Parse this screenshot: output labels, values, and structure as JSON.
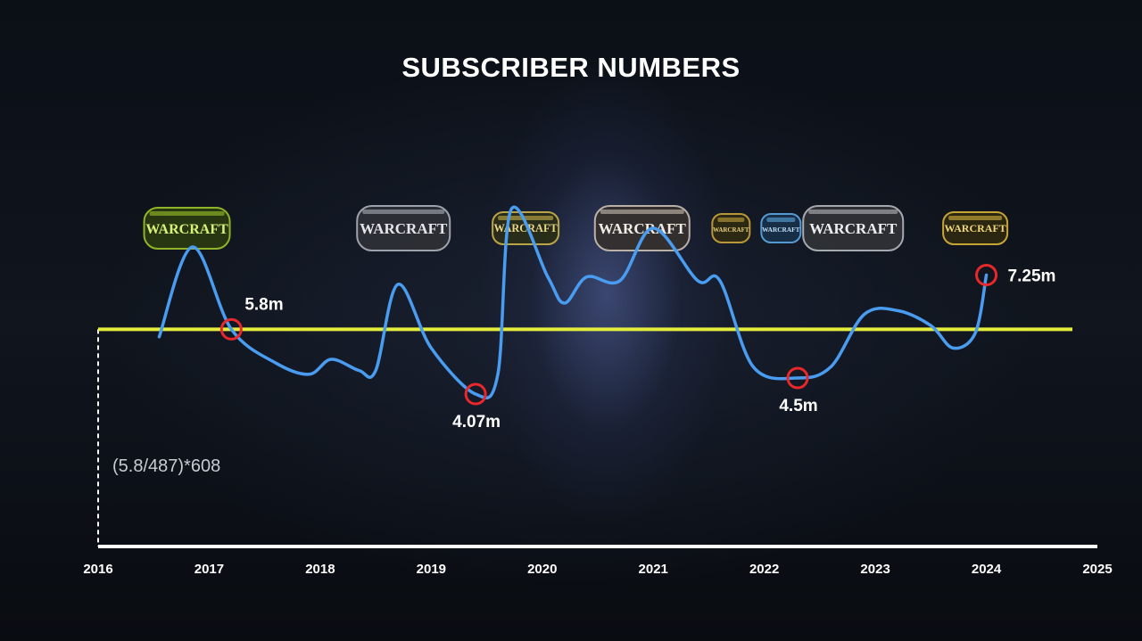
{
  "title": "SUBSCRIBER NUMBERS",
  "formula_note": "(5.8/487)*608",
  "logo_label": "WARCRAFT",
  "colors": {
    "line": "#4a9cf0",
    "reference_line": "#e4ec3c",
    "marker": "#e8282a",
    "axis": "#ffffff"
  },
  "chart_data": {
    "type": "line",
    "title": "SUBSCRIBER NUMBERS",
    "xlabel": "",
    "ylabel": "",
    "x_ticks": [
      "2016",
      "2017",
      "2018",
      "2019",
      "2020",
      "2021",
      "2022",
      "2023",
      "2024",
      "2025"
    ],
    "xlim": [
      2016,
      2025
    ],
    "ylim": [
      0,
      10
    ],
    "grid": false,
    "series": [
      {
        "values": [
          {
            "x": 2016.55,
            "y": 5.6
          },
          {
            "x": 2016.85,
            "y": 8.0
          },
          {
            "x": 2017.2,
            "y": 5.8
          },
          {
            "x": 2017.6,
            "y": 4.9
          },
          {
            "x": 2017.9,
            "y": 4.6
          },
          {
            "x": 2018.1,
            "y": 5.0
          },
          {
            "x": 2018.35,
            "y": 4.7
          },
          {
            "x": 2018.5,
            "y": 4.7
          },
          {
            "x": 2018.7,
            "y": 7.0
          },
          {
            "x": 2019.0,
            "y": 5.3
          },
          {
            "x": 2019.4,
            "y": 4.07
          },
          {
            "x": 2019.6,
            "y": 4.6
          },
          {
            "x": 2019.72,
            "y": 9.0
          },
          {
            "x": 2020.05,
            "y": 7.2
          },
          {
            "x": 2020.2,
            "y": 6.5
          },
          {
            "x": 2020.4,
            "y": 7.2
          },
          {
            "x": 2020.7,
            "y": 7.1
          },
          {
            "x": 2021.0,
            "y": 8.5
          },
          {
            "x": 2021.4,
            "y": 7.1
          },
          {
            "x": 2021.6,
            "y": 7.1
          },
          {
            "x": 2021.9,
            "y": 4.8
          },
          {
            "x": 2022.3,
            "y": 4.5
          },
          {
            "x": 2022.6,
            "y": 4.8
          },
          {
            "x": 2022.9,
            "y": 6.2
          },
          {
            "x": 2023.2,
            "y": 6.3
          },
          {
            "x": 2023.5,
            "y": 5.9
          },
          {
            "x": 2023.7,
            "y": 5.3
          },
          {
            "x": 2023.9,
            "y": 5.7
          },
          {
            "x": 2024.0,
            "y": 7.25
          }
        ]
      }
    ],
    "reference_line": {
      "y": 5.8
    },
    "annotations": [
      {
        "label": "5.8m",
        "x": 2017.2,
        "y": 5.8,
        "label_pos": "above-right"
      },
      {
        "label": "4.07m",
        "x": 2019.4,
        "y": 4.07,
        "label_pos": "below"
      },
      {
        "label": "4.5m",
        "x": 2022.3,
        "y": 4.5,
        "label_pos": "below"
      },
      {
        "label": "7.25m",
        "x": 2024.0,
        "y": 7.25,
        "label_pos": "right"
      }
    ],
    "logo_markers": [
      2016.8,
      2018.75,
      2019.85,
      2020.9,
      2021.7,
      2022.15,
      2022.8,
      2023.9
    ]
  }
}
